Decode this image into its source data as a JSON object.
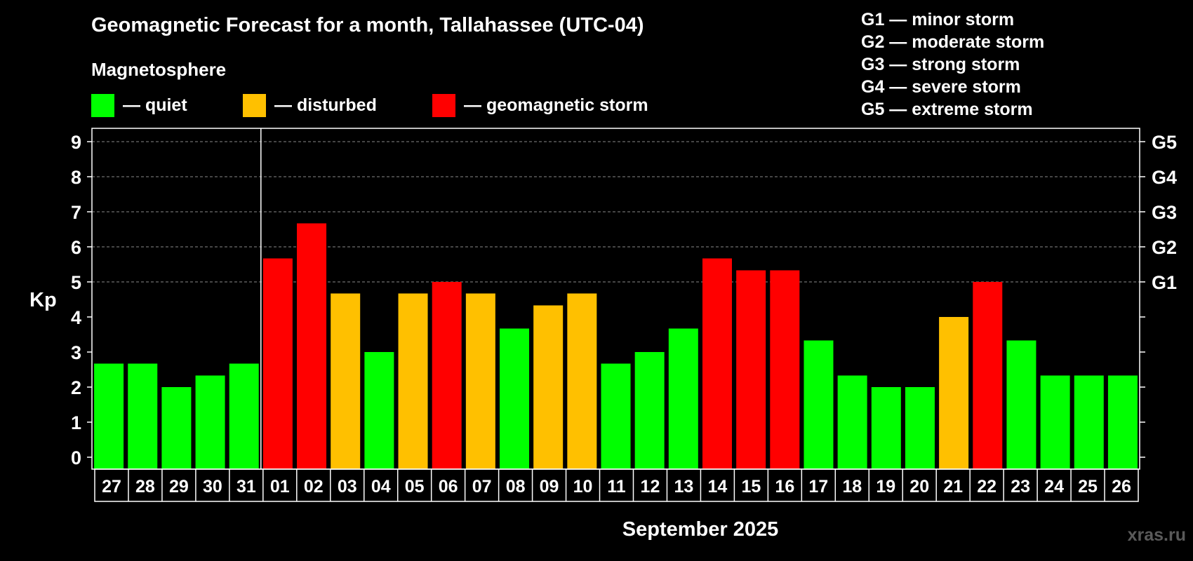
{
  "header": {
    "title": "Geomagnetic Forecast for a month, Tallahassee (UTC-04)",
    "subtitle": "Magnetosphere"
  },
  "legend": [
    {
      "label": "— quiet",
      "color": "#00ff00"
    },
    {
      "label": "— disturbed",
      "color": "#ffc000"
    },
    {
      "label": "— geomagnetic storm",
      "color": "#ff0000"
    }
  ],
  "g_scale": [
    "G1 — minor storm",
    "G2 — moderate storm",
    "G3 — strong storm",
    "G4 — severe storm",
    "G5 — extreme storm"
  ],
  "watermark": "xras.ru",
  "chart_data": {
    "type": "bar",
    "title": "Geomagnetic Forecast for a month, Tallahassee (UTC-04)",
    "xlabel": "September 2025",
    "ylabel": "Kp",
    "ylim": [
      0,
      9
    ],
    "yticks": [
      "0",
      "1",
      "2",
      "3",
      "4",
      "5",
      "6",
      "7",
      "8",
      "9"
    ],
    "right_axis_labels": [
      {
        "kp": 5,
        "label": "G1"
      },
      {
        "kp": 6,
        "label": "G2"
      },
      {
        "kp": 7,
        "label": "G3"
      },
      {
        "kp": 8,
        "label": "G4"
      },
      {
        "kp": 9,
        "label": "G5"
      }
    ],
    "grid": "dashed horizontal lines at Kp 5–9",
    "month_separator_after": "31",
    "categories": [
      "27",
      "28",
      "29",
      "30",
      "31",
      "01",
      "02",
      "03",
      "04",
      "05",
      "06",
      "07",
      "08",
      "09",
      "10",
      "11",
      "12",
      "13",
      "14",
      "15",
      "16",
      "17",
      "18",
      "19",
      "20",
      "21",
      "22",
      "23",
      "24",
      "25",
      "26"
    ],
    "values": [
      2.67,
      2.67,
      2.0,
      2.33,
      2.67,
      5.67,
      6.67,
      4.67,
      3.0,
      4.67,
      5.0,
      4.67,
      3.67,
      4.33,
      4.67,
      2.67,
      3.0,
      3.67,
      5.67,
      5.33,
      5.33,
      3.33,
      2.33,
      2.0,
      2.0,
      4.0,
      5.0,
      3.33,
      2.33,
      2.33,
      2.33
    ],
    "status": [
      "quiet",
      "quiet",
      "quiet",
      "quiet",
      "quiet",
      "storm",
      "storm",
      "disturbed",
      "quiet",
      "disturbed",
      "storm",
      "disturbed",
      "quiet",
      "disturbed",
      "disturbed",
      "quiet",
      "quiet",
      "quiet",
      "storm",
      "storm",
      "storm",
      "quiet",
      "quiet",
      "quiet",
      "quiet",
      "disturbed",
      "storm",
      "quiet",
      "quiet",
      "quiet",
      "quiet"
    ],
    "status_colors": {
      "quiet": "#00ff00",
      "disturbed": "#ffc000",
      "storm": "#ff0000"
    }
  }
}
